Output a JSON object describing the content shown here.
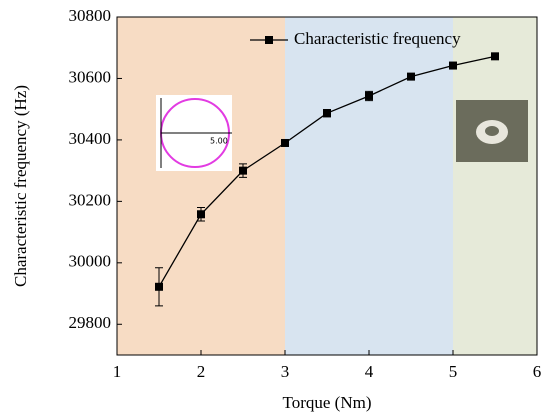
{
  "chart_data": {
    "type": "line",
    "x_label": "Torque (Nm)",
    "y_label": "Characteristic frequency (Hz)",
    "series": [
      {
        "name": "Characteristic frequency",
        "color": "#000000",
        "x": [
          1.5,
          2,
          2.5,
          3,
          3.5,
          4,
          4.5,
          5,
          5.5
        ],
        "values": [
          29922,
          30158,
          30300,
          30390,
          30487,
          30543,
          30606,
          30642,
          30672
        ],
        "errors": [
          62,
          22,
          22,
          8,
          12,
          15,
          8,
          8,
          8
        ]
      }
    ],
    "xlim": [
      1,
      6
    ],
    "xticks": [
      1,
      2,
      3,
      4,
      5,
      6
    ],
    "ylim": [
      29700,
      30800
    ],
    "yticks": [
      29800,
      30000,
      30200,
      30400,
      30600,
      30800
    ],
    "shaded_regions": [
      {
        "xlim": [
          1,
          3
        ],
        "color": "#f7dcc4"
      },
      {
        "xlim": [
          3,
          5
        ],
        "color": "#d8e4f0"
      },
      {
        "xlim": [
          5,
          6
        ],
        "color": "#e6ead9"
      }
    ],
    "legend_position": "upper right",
    "inset_label": "5.00"
  }
}
